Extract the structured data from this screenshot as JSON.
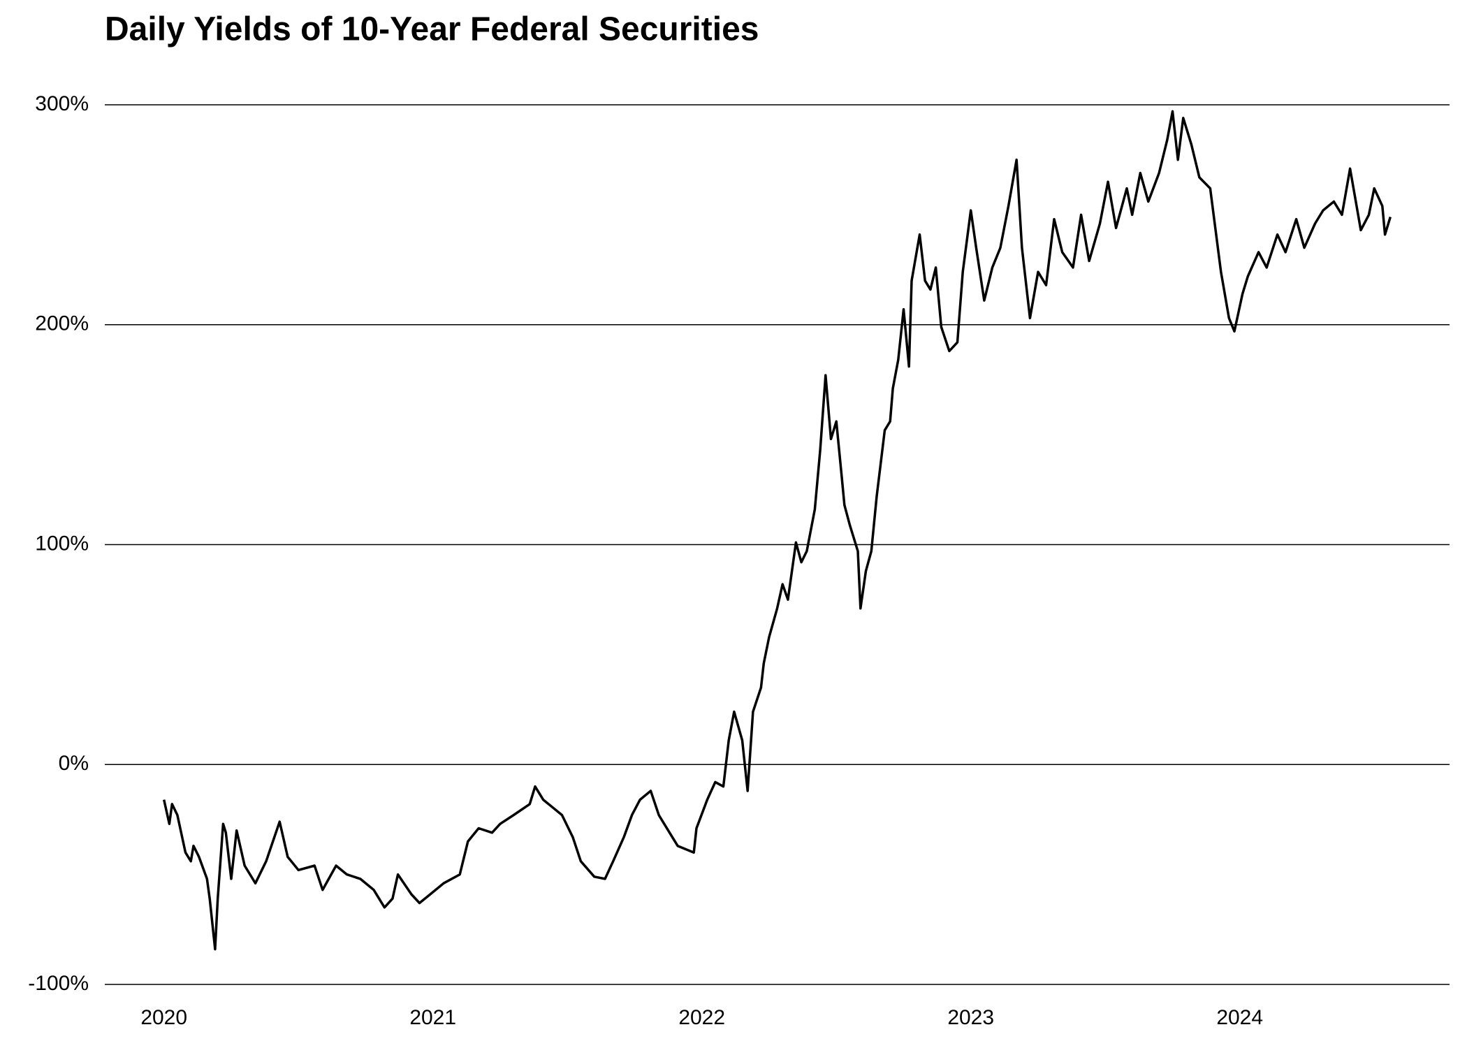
{
  "chart_data": {
    "type": "line",
    "title": "Daily Yields of 10-Year Federal Securities",
    "x": [
      2020.0,
      2020.02,
      2020.03,
      2020.05,
      2020.08,
      2020.1,
      2020.11,
      2020.13,
      2020.16,
      2020.17,
      2020.19,
      2020.2,
      2020.22,
      2020.23,
      2020.25,
      2020.27,
      2020.3,
      2020.34,
      2020.38,
      2020.43,
      2020.46,
      2020.5,
      2020.56,
      2020.59,
      2020.64,
      2020.68,
      2020.73,
      2020.78,
      2020.82,
      2020.85,
      2020.87,
      2020.92,
      2020.95,
      2020.99,
      2021.04,
      2021.1,
      2021.13,
      2021.17,
      2021.22,
      2021.25,
      2021.3,
      2021.36,
      2021.38,
      2021.41,
      2021.45,
      2021.48,
      2021.52,
      2021.55,
      2021.6,
      2021.64,
      2021.67,
      2021.71,
      2021.74,
      2021.77,
      2021.81,
      2021.84,
      2021.88,
      2021.91,
      2021.97,
      2021.98,
      2022.02,
      2022.05,
      2022.08,
      2022.1,
      2022.12,
      2022.15,
      2022.17,
      2022.19,
      2022.22,
      2022.23,
      2022.25,
      2022.28,
      2022.3,
      2022.32,
      2022.35,
      2022.37,
      2022.39,
      2022.42,
      2022.44,
      2022.46,
      2022.48,
      2022.5,
      2022.52,
      2022.53,
      2022.55,
      2022.58,
      2022.59,
      2022.61,
      2022.63,
      2022.65,
      2022.68,
      2022.7,
      2022.71,
      2022.73,
      2022.75,
      2022.77,
      2022.78,
      2022.81,
      2022.83,
      2022.85,
      2022.87,
      2022.89,
      2022.92,
      2022.95,
      2022.97,
      2023.0,
      2023.02,
      2023.05,
      2023.08,
      2023.11,
      2023.14,
      2023.17,
      2023.19,
      2023.22,
      2023.25,
      2023.28,
      2023.31,
      2023.34,
      2023.38,
      2023.41,
      2023.44,
      2023.48,
      2023.51,
      2023.54,
      2023.58,
      2023.6,
      2023.63,
      2023.66,
      2023.7,
      2023.73,
      2023.75,
      2023.77,
      2023.79,
      2023.82,
      2023.85,
      2023.89,
      2023.91,
      2023.93,
      2023.96,
      2023.98,
      2024.01,
      2024.03,
      2024.07,
      2024.1,
      2024.14,
      2024.17,
      2024.21,
      2024.24,
      2024.28,
      2024.31,
      2024.35,
      2024.38,
      2024.41,
      2024.45,
      2024.48,
      2024.5,
      2024.53,
      2024.54,
      2024.56
    ],
    "values": [
      -16,
      -27,
      -18,
      -23,
      -40,
      -44,
      -37,
      -42,
      -52,
      -61,
      -84,
      -61,
      -27,
      -31,
      -52,
      -30,
      -46,
      -54,
      -44,
      -26,
      -42,
      -48,
      -46,
      -57,
      -46,
      -50,
      -52,
      -57,
      -65,
      -61,
      -50,
      -59,
      -63,
      -59,
      -54,
      -50,
      -35,
      -29,
      -31,
      -27,
      -23,
      -18,
      -10,
      -16,
      -20,
      -23,
      -33,
      -44,
      -51,
      -52,
      -44,
      -33,
      -23,
      -16,
      -12,
      -23,
      -31,
      -37,
      -40,
      -29,
      -16,
      -8,
      -10,
      11,
      24,
      11,
      -12,
      24,
      35,
      46,
      58,
      71,
      82,
      75,
      101,
      92,
      97,
      116,
      143,
      177,
      148,
      156,
      131,
      118,
      109,
      97,
      71,
      88,
      97,
      122,
      152,
      156,
      171,
      184,
      207,
      181,
      220,
      241,
      220,
      216,
      226,
      199,
      188,
      192,
      224,
      252,
      235,
      211,
      226,
      235,
      254,
      275,
      235,
      203,
      224,
      218,
      248,
      233,
      226,
      250,
      229,
      246,
      265,
      244,
      262,
      250,
      269,
      256,
      269,
      284,
      297,
      275,
      294,
      282,
      267,
      262,
      243,
      224,
      203,
      197,
      214,
      222,
      233,
      226,
      241,
      233,
      248,
      235,
      246,
      252,
      256,
      250,
      271,
      243,
      250,
      262,
      254,
      241,
      249
    ],
    "color": "#000000",
    "xlim": [
      2019.78,
      2024.78
    ],
    "xticks": [
      2020,
      2021,
      2022,
      2023,
      2024
    ],
    "ylim": [
      -100,
      300
    ],
    "yticks": [
      {
        "value": -100,
        "label": "-100%"
      },
      {
        "value": 0,
        "label": "0%"
      },
      {
        "value": 100,
        "label": "100%"
      },
      {
        "value": 200,
        "label": "200%"
      },
      {
        "value": 300,
        "label": "300%"
      }
    ],
    "grid": true
  }
}
